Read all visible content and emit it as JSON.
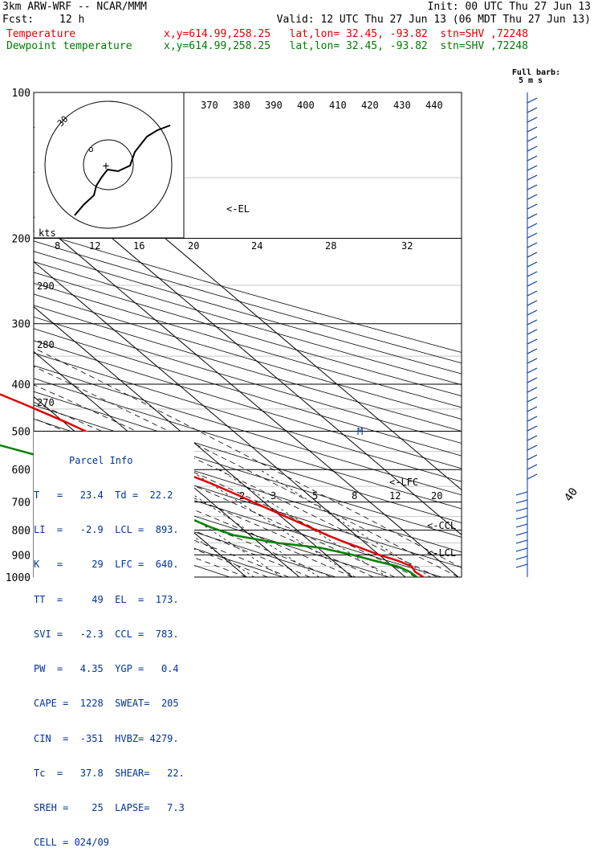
{
  "header": {
    "model": "3km ARW-WRF -- NCAR/MMM",
    "init": "Init: 00 UTC Thu 27 Jun 13",
    "fcst_label": "Fcst:",
    "fcst_value": "12 h",
    "valid": "Valid: 12 UTC Thu 27 Jun 13 (06 MDT Thu 27 Jun 13)",
    "temp_label": "Temperature",
    "temp_info": "x,y=614.99,258.25   lat,lon= 32.45, -93.82  stn=SHV ,72248",
    "dew_label": "Dewpoint temperature",
    "dew_info": "x,y=614.99,258.25   lat,lon= 32.45, -93.82  stn=SHV ,72248"
  },
  "barb_legend": {
    "line1": "Full barb:",
    "line2": "5 m s"
  },
  "hodograph": {
    "units": "kts",
    "ring_label": "30",
    "ticks": [
      "8",
      "12",
      "16",
      "20",
      "24",
      "28",
      "32"
    ]
  },
  "labels": {
    "el": "<-EL",
    "lfc": "<-LFC",
    "ccl": "<-CCL",
    "lcl": "<-LCL",
    "m": "M",
    "theta": [
      "370",
      "380",
      "390",
      "400",
      "410",
      "420",
      "430",
      "440"
    ],
    "theta_left": [
      "290",
      "280",
      "270"
    ],
    "mixing": [
      "2",
      "3",
      "5",
      "8",
      "12",
      "20"
    ]
  },
  "parcel_info": {
    "title": "Parcel Info",
    "rows": [
      "T   =   23.4  Td =  22.2",
      "LI  =   -2.9  LCL =  893.",
      "K   =     29  LFC =  640.",
      "TT  =     49  EL  =  173.",
      "SVI =   -2.3  CCL =  783.",
      "PW  =   4.35  YGP =   0.4",
      "CAPE =  1228  SWEAT=  205",
      "CIN  =  -351  HVBZ= 4279.",
      "Tc  =   37.8  SHEAR=   22.",
      "SREH =    25  LAPSE=   7.3",
      "CELL = 024/09"
    ]
  },
  "colors": {
    "temperature": "#e00000",
    "dewpoint": "#008000",
    "grid": "#000000",
    "info": "#003399"
  },
  "chart_data": {
    "type": "line",
    "title": "Skew-T log-p diagram",
    "y_axis": {
      "label": "",
      "scale": "log",
      "reversed": true,
      "ticks": [
        100,
        200,
        300,
        400,
        500,
        600,
        700,
        800,
        900,
        1000
      ]
    },
    "isotherm_ticks": [
      -80,
      -70,
      -60,
      -50,
      -40,
      -30,
      -20,
      -10,
      0,
      10,
      20,
      30,
      40
    ],
    "series": [
      {
        "name": "Temperature",
        "pressure": [
          1000,
          975,
          950,
          925,
          900,
          870,
          850,
          820,
          790,
          760,
          730,
          700,
          680,
          640,
          600,
          560,
          520,
          480,
          440,
          410,
          380,
          350,
          320,
          290,
          260,
          230,
          200,
          180,
          160,
          140,
          125,
          110,
          100
        ],
        "value": [
          23.4,
          23.0,
          23.6,
          22.2,
          20.0,
          18.0,
          16.5,
          14.6,
          13.1,
          11.4,
          9.7,
          7.9,
          6.8,
          4.1,
          0.4,
          -3.1,
          -6.4,
          -9.5,
          -13.5,
          -17.0,
          -21.0,
          -25.4,
          -30.3,
          -35.8,
          -42.0,
          -49.2,
          -56.8,
          -62.4,
          -65.9,
          -62.8,
          -61.8,
          -61.5,
          -61.6
        ]
      },
      {
        "name": "Dewpoint temperature",
        "pressure": [
          1000,
          975,
          950,
          925,
          900,
          870,
          850,
          820,
          790,
          760,
          730,
          700,
          680,
          640,
          600,
          560,
          520,
          480,
          440,
          410,
          380,
          350,
          320,
          290,
          260,
          230,
          200,
          180,
          160,
          140,
          125,
          110,
          100
        ],
        "value": [
          22.2,
          22.0,
          20.9,
          17.8,
          15.0,
          10.4,
          3.2,
          -3.0,
          -5.6,
          -7.4,
          -8.8,
          -11.1,
          -13.4,
          -16.4,
          -19.0,
          -22.6,
          -29.9,
          -38.6,
          -49.6,
          -54.5,
          -57.2,
          -60.5,
          -64.7,
          -68.9,
          -73.4,
          -78.1,
          -81.3,
          -83.3,
          -85.3,
          -86.3,
          -88.3,
          -90.3,
          -92.4
        ]
      }
    ],
    "wind_barbs": "shown along right edge"
  }
}
